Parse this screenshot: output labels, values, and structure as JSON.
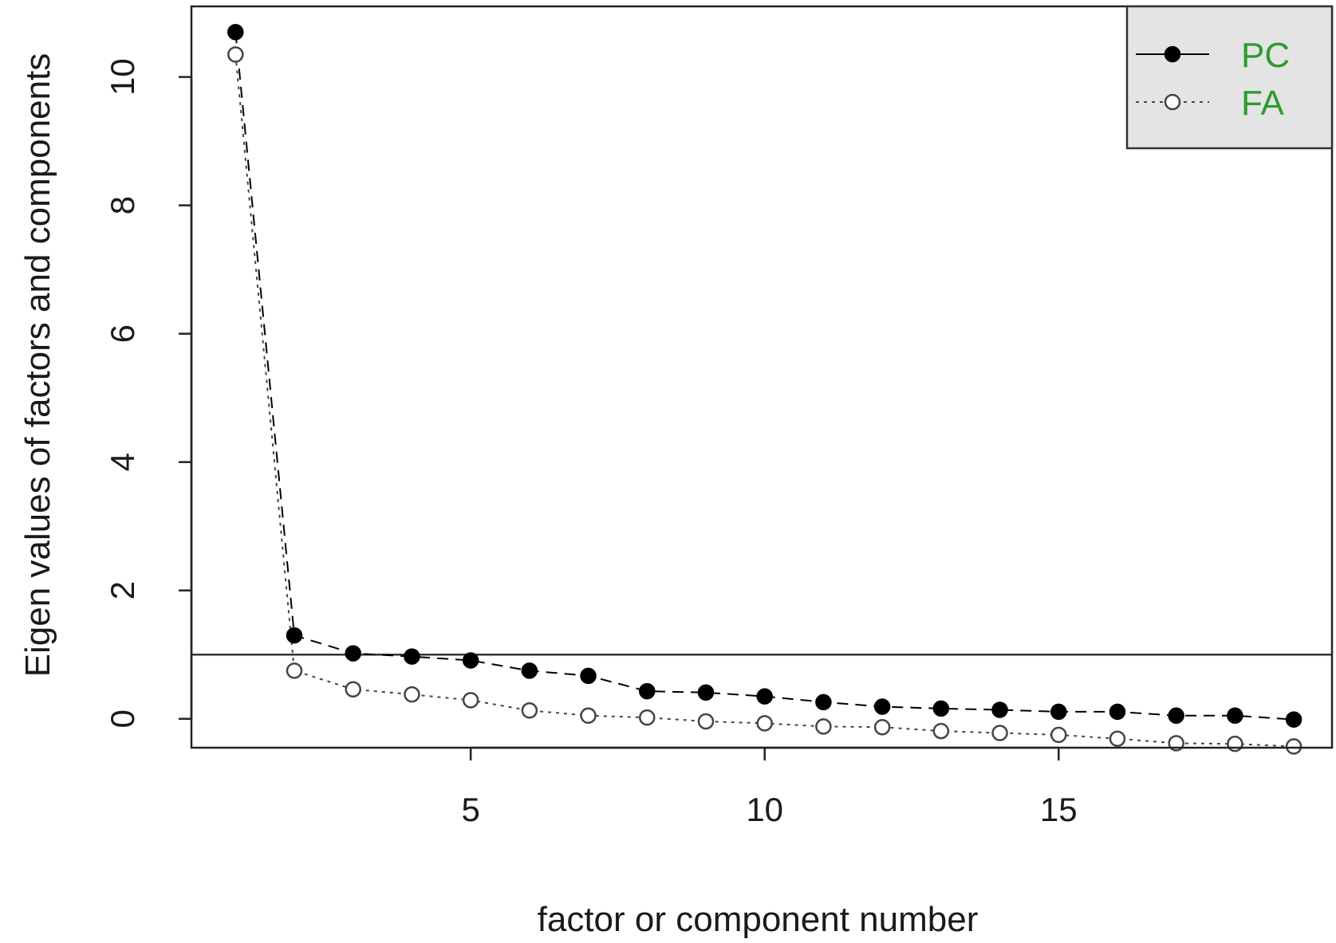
{
  "chart_data": {
    "type": "line",
    "title": "",
    "xlabel": "factor or component number",
    "ylabel": "Eigen values of factors and components",
    "xlim": [
      0.25,
      19.65
    ],
    "ylim": [
      -0.45,
      11.1
    ],
    "xticks": [
      5,
      10,
      15
    ],
    "yticks": [
      0,
      2,
      4,
      6,
      8,
      10
    ],
    "reference_line_y": 1,
    "grid": false,
    "legend_position": "top-right",
    "legend_text_color": "#2e9b2e",
    "x": [
      1,
      2,
      3,
      4,
      5,
      6,
      7,
      8,
      9,
      10,
      11,
      12,
      13,
      14,
      15,
      16,
      17,
      18,
      19
    ],
    "series": [
      {
        "name": "PC",
        "marker": "filled-circle",
        "line": "dashed",
        "color": "#000000",
        "values": [
          10.7,
          1.3,
          1.02,
          0.97,
          0.91,
          0.75,
          0.67,
          0.43,
          0.41,
          0.35,
          0.26,
          0.19,
          0.16,
          0.14,
          0.11,
          0.11,
          0.05,
          0.05,
          -0.01
        ]
      },
      {
        "name": "FA",
        "marker": "open-circle",
        "line": "dotted",
        "color": "#444444",
        "values": [
          10.35,
          0.75,
          0.46,
          0.38,
          0.29,
          0.13,
          0.05,
          0.02,
          -0.04,
          -0.07,
          -0.12,
          -0.13,
          -0.19,
          -0.22,
          -0.25,
          -0.31,
          -0.38,
          -0.39,
          -0.43
        ]
      }
    ]
  }
}
